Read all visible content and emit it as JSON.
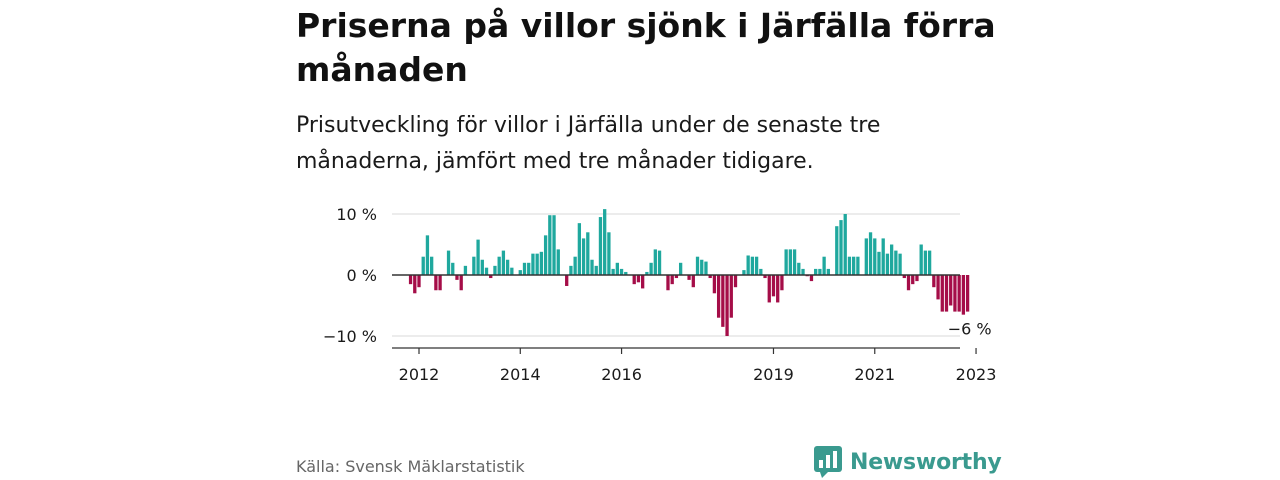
{
  "title": "Priserna på villor sjönk i Järfälla förra månaden",
  "subtitle": "Prisutveckling för villor i Järfälla under de senaste tre månaderna, jämfört med tre månader tidigare.",
  "source": "Källa: Svensk Mäklarstatistik",
  "brand": {
    "name": "Newsworthy",
    "icon": "newsworthy-logo-icon"
  },
  "colors": {
    "positive": "#1fa89e",
    "negative": "#a50d48",
    "grid": "#d9d9d9",
    "axis": "#333333",
    "brand": "#3a9a8f"
  },
  "chart_data": {
    "type": "bar",
    "title": "",
    "xlabel": "",
    "ylabel": "",
    "ylim": [
      -10,
      10
    ],
    "y_ticks": [
      {
        "value": 10,
        "label": "10 %"
      },
      {
        "value": 0,
        "label": "0 %"
      },
      {
        "value": -10,
        "label": "−10 %"
      }
    ],
    "x_ticks": [
      "2012",
      "2014",
      "2016",
      "2019",
      "2021",
      "2023"
    ],
    "grid": "horizontal",
    "start": "2011-11",
    "frequency": "monthly",
    "annotation": {
      "text": "−6 %",
      "value": -6
    },
    "values": [
      -1.5,
      -3,
      -2,
      3,
      6.5,
      3,
      -2.5,
      -2.5,
      0,
      4,
      2,
      -0.8,
      -2.5,
      1.5,
      0,
      3,
      5.8,
      2.5,
      1.2,
      -0.5,
      1.5,
      3,
      4,
      2.5,
      1.2,
      0,
      0.8,
      2,
      2,
      3.5,
      3.5,
      3.8,
      6.5,
      9.8,
      9.8,
      4.2,
      0,
      -1.8,
      1.5,
      3,
      8.5,
      6,
      7,
      2.5,
      1.5,
      9.5,
      10.8,
      7,
      1,
      2,
      1,
      0.5,
      0,
      -1.5,
      -1.2,
      -2.2,
      0.5,
      2,
      4.2,
      4,
      0,
      -2.5,
      -1.5,
      -0.5,
      2,
      0,
      -0.8,
      -2,
      3,
      2.5,
      2.2,
      -0.5,
      -3,
      -7,
      -8.5,
      -10,
      -7,
      -2,
      0,
      0.8,
      3.2,
      3,
      3,
      1,
      -0.5,
      -4.5,
      -3.5,
      -4.5,
      -2.5,
      4.2,
      4.2,
      4.2,
      2,
      1,
      -0.2,
      -1,
      1,
      1,
      3,
      1,
      0,
      8,
      9,
      10,
      3,
      3,
      3,
      0,
      6,
      7,
      6,
      3.8,
      6,
      3.5,
      5,
      4,
      3.5,
      -0.5,
      -2.5,
      -1.5,
      -1,
      5,
      4,
      4,
      -2,
      -4,
      -6,
      -6,
      -5,
      -6,
      -6,
      -6.5,
      -6
    ]
  }
}
